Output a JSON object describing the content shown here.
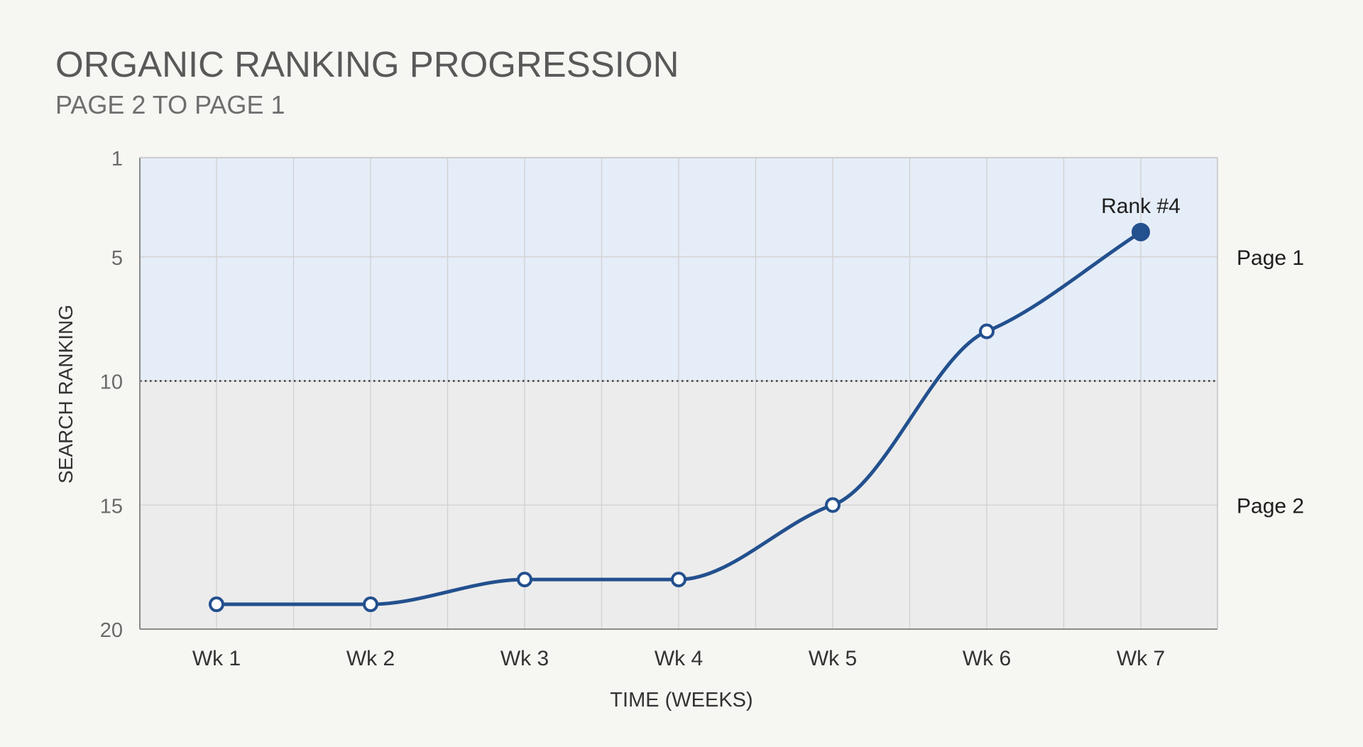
{
  "chart_data": {
    "type": "line",
    "title": "ORGANIC RANKING PROGRESSION",
    "subtitle": "PAGE 2 TO PAGE 1",
    "xlabel": "TIME (WEEKS)",
    "ylabel": "SEARCH RANKING",
    "categories": [
      "Wk 1",
      "Wk 2",
      "Wk 3",
      "Wk 4",
      "Wk 5",
      "Wk 6",
      "Wk 7"
    ],
    "series": [
      {
        "values": [
          19,
          19,
          18,
          18,
          15,
          8,
          4
        ]
      }
    ],
    "ylim": [
      1,
      20
    ],
    "y_inverted": true,
    "yticks": [
      1,
      5,
      10,
      15,
      20
    ],
    "grid": true,
    "threshold": {
      "value": 10,
      "style": "dotted"
    },
    "bands": [
      {
        "label": "Page 1",
        "from": 1,
        "to": 10,
        "label_at": 5,
        "color": "#e5edf8"
      },
      {
        "label": "Page 2",
        "from": 10,
        "to": 20,
        "label_at": 15,
        "color": "#ececec"
      }
    ],
    "annotations": [
      {
        "text": "Rank #4",
        "category": "Wk 7",
        "value": 4
      }
    ],
    "colors": {
      "line": "#23508e",
      "grid": "#d1d1d1",
      "axis": "#8a8a8a",
      "title": "#595959",
      "tick": "#333333",
      "marker_fill": "#ffffff"
    }
  }
}
